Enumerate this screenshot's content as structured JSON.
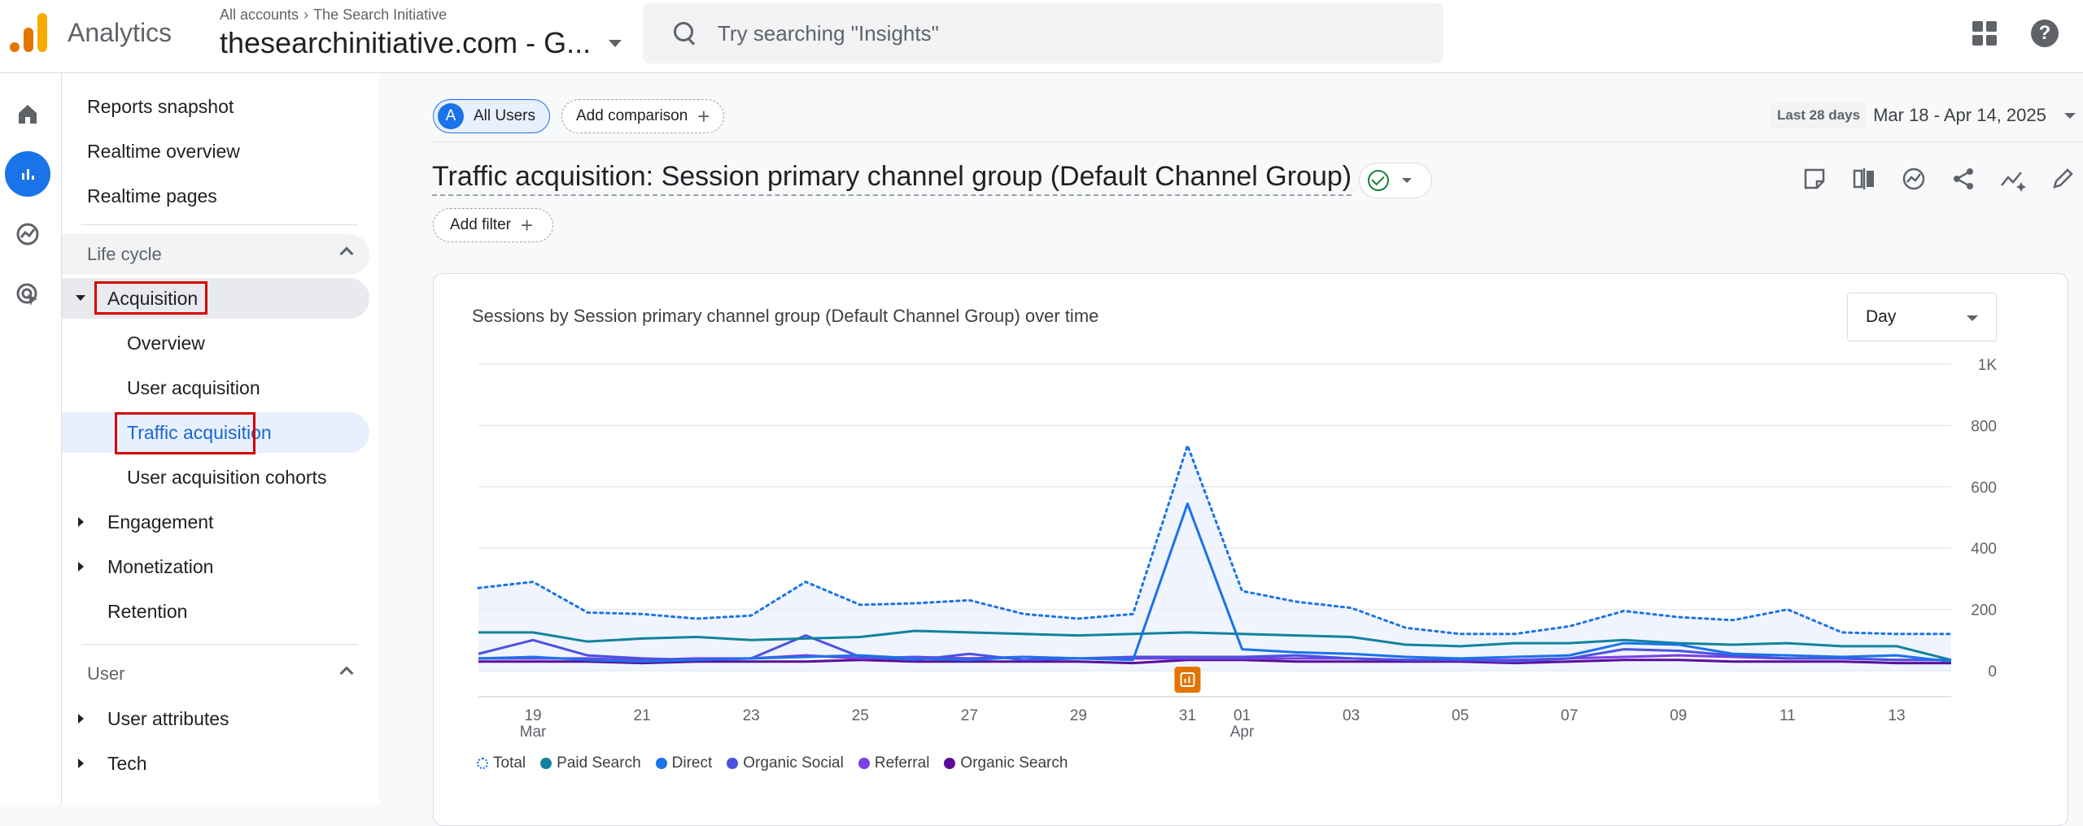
{
  "app": {
    "name": "Analytics"
  },
  "breadcrumb": {
    "accounts": "All accounts",
    "separator": "›",
    "account": "The Search Initiative"
  },
  "property": {
    "name": "thesearchinitiative.com - G..."
  },
  "search": {
    "placeholder": "Try searching \"Insights\""
  },
  "rail": {
    "icons": [
      "home-icon",
      "reports-icon",
      "explore-icon",
      "advertising-icon"
    ]
  },
  "sidenav": {
    "reports_snapshot": "Reports snapshot",
    "realtime_overview": "Realtime overview",
    "realtime_pages": "Realtime pages",
    "lifecycle": "Life cycle",
    "acquisition": "Acquisition",
    "overview": "Overview",
    "user_acquisition": "User acquisition",
    "traffic_acquisition": "Traffic acquisition",
    "user_acquisition_cohorts": "User acquisition cohorts",
    "engagement": "Engagement",
    "monetization": "Monetization",
    "retention": "Retention",
    "user": "User",
    "user_attributes": "User attributes",
    "tech": "Tech"
  },
  "comparison": {
    "badge": "A",
    "all_users": "All Users",
    "add_comparison": "Add comparison",
    "plus": "+"
  },
  "date_range": {
    "label": "Last 28 days",
    "value": "Mar 18 - Apr 14, 2025"
  },
  "report": {
    "title": "Traffic acquisition: Session primary channel group (Default Channel Group)",
    "add_filter": "Add filter"
  },
  "card": {
    "title": "Sessions by Session primary channel group (Default Channel Group) over time",
    "granularity": "Day"
  },
  "colors": {
    "total": "#1a73e8",
    "paid_search": "#12829c",
    "direct": "#1a73e8",
    "organic_social": "#4c51e0",
    "referral": "#7b3fe4",
    "organic_search": "#5b0f98",
    "annotation": "#e37400"
  },
  "chart_data": {
    "type": "line",
    "x": [
      "Mar 18",
      "Mar 19",
      "Mar 20",
      "Mar 21",
      "Mar 22",
      "Mar 23",
      "Mar 24",
      "Mar 25",
      "Mar 26",
      "Mar 27",
      "Mar 28",
      "Mar 29",
      "Mar 30",
      "Mar 31",
      "Apr 01",
      "Apr 02",
      "Apr 03",
      "Apr 04",
      "Apr 05",
      "Apr 06",
      "Apr 07",
      "Apr 08",
      "Apr 09",
      "Apr 10",
      "Apr 11",
      "Apr 12",
      "Apr 13",
      "Apr 14"
    ],
    "x_ticks": [
      {
        "day": "19",
        "month": "Mar",
        "index": 1
      },
      {
        "day": "21",
        "month": "",
        "index": 3
      },
      {
        "day": "23",
        "month": "",
        "index": 5
      },
      {
        "day": "25",
        "month": "",
        "index": 7
      },
      {
        "day": "27",
        "month": "",
        "index": 9
      },
      {
        "day": "29",
        "month": "",
        "index": 11
      },
      {
        "day": "31",
        "month": "",
        "index": 13
      },
      {
        "day": "01",
        "month": "Apr",
        "index": 14
      },
      {
        "day": "03",
        "month": "",
        "index": 16
      },
      {
        "day": "05",
        "month": "",
        "index": 18
      },
      {
        "day": "07",
        "month": "",
        "index": 20
      },
      {
        "day": "09",
        "month": "",
        "index": 22
      },
      {
        "day": "11",
        "month": "",
        "index": 24
      },
      {
        "day": "13",
        "month": "",
        "index": 26
      }
    ],
    "y_ticks": [
      "0",
      "200",
      "400",
      "600",
      "800",
      "1K"
    ],
    "ylim": [
      0,
      1000
    ],
    "grid": true,
    "annotation_index": 13,
    "series": [
      {
        "name": "Total",
        "style": "dotted",
        "values": [
          270,
          290,
          190,
          185,
          170,
          180,
          290,
          215,
          220,
          230,
          185,
          170,
          185,
          735,
          260,
          225,
          205,
          140,
          120,
          120,
          145,
          195,
          175,
          165,
          200,
          125,
          120,
          120
        ]
      },
      {
        "name": "Paid Search",
        "style": "solid",
        "values": [
          125,
          125,
          95,
          105,
          110,
          100,
          105,
          110,
          130,
          125,
          120,
          115,
          120,
          125,
          120,
          115,
          110,
          85,
          80,
          90,
          90,
          100,
          90,
          85,
          90,
          80,
          80,
          35
        ]
      },
      {
        "name": "Direct",
        "style": "solid",
        "values": [
          40,
          45,
          35,
          30,
          35,
          40,
          45,
          50,
          40,
          35,
          45,
          40,
          35,
          545,
          70,
          60,
          55,
          45,
          40,
          45,
          50,
          90,
          85,
          55,
          50,
          45,
          50,
          30
        ]
      },
      {
        "name": "Organic Social",
        "style": "solid",
        "values": [
          55,
          100,
          50,
          40,
          35,
          40,
          115,
          45,
          35,
          55,
          35,
          40,
          45,
          45,
          45,
          50,
          40,
          35,
          35,
          30,
          40,
          70,
          65,
          50,
          40,
          40,
          35,
          35
        ]
      },
      {
        "name": "Referral",
        "style": "solid",
        "values": [
          40,
          40,
          40,
          35,
          40,
          40,
          50,
          40,
          45,
          40,
          45,
          40,
          40,
          40,
          40,
          40,
          40,
          35,
          35,
          35,
          40,
          45,
          50,
          45,
          40,
          40,
          35,
          35
        ]
      },
      {
        "name": "Organic Search",
        "style": "solid",
        "values": [
          30,
          30,
          30,
          25,
          30,
          30,
          30,
          35,
          30,
          30,
          30,
          30,
          25,
          35,
          35,
          30,
          30,
          30,
          30,
          25,
          30,
          35,
          35,
          30,
          30,
          30,
          25,
          25
        ]
      }
    ]
  }
}
